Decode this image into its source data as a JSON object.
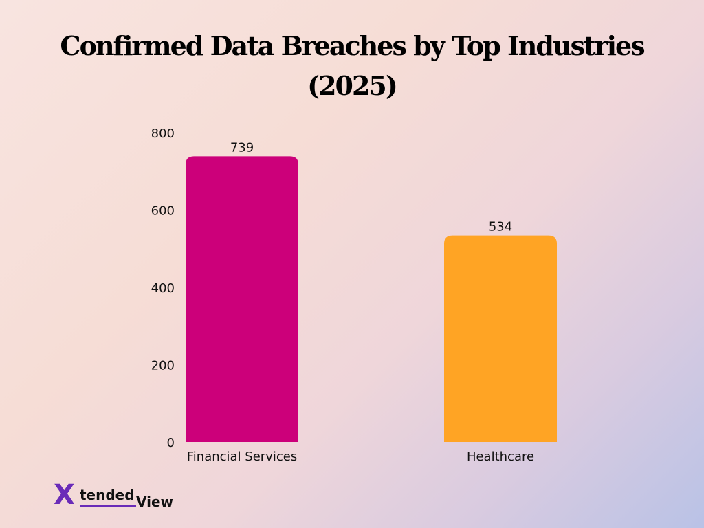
{
  "chart_data": {
    "type": "bar",
    "title_line1": "Confirmed Data Breaches by Top Industries",
    "title_line2": "(2025)",
    "categories": [
      "Financial Services",
      "Healthcare"
    ],
    "values": [
      739,
      534
    ],
    "value_labels": [
      "739",
      "534"
    ],
    "bar_colors": [
      "#cc007a",
      "#ffa424"
    ],
    "ylim": [
      0,
      800
    ],
    "yticks": [
      0,
      200,
      400,
      600,
      800
    ],
    "ytick_labels": [
      "0",
      "200",
      "400",
      "600",
      "800"
    ],
    "grid": false,
    "xlabel": "",
    "ylabel": ""
  },
  "logo": {
    "text_x": "X",
    "text_tended": "tended",
    "text_view": "View",
    "brand_color": "#6a2bb8",
    "accent_color": "#f2c21b"
  }
}
